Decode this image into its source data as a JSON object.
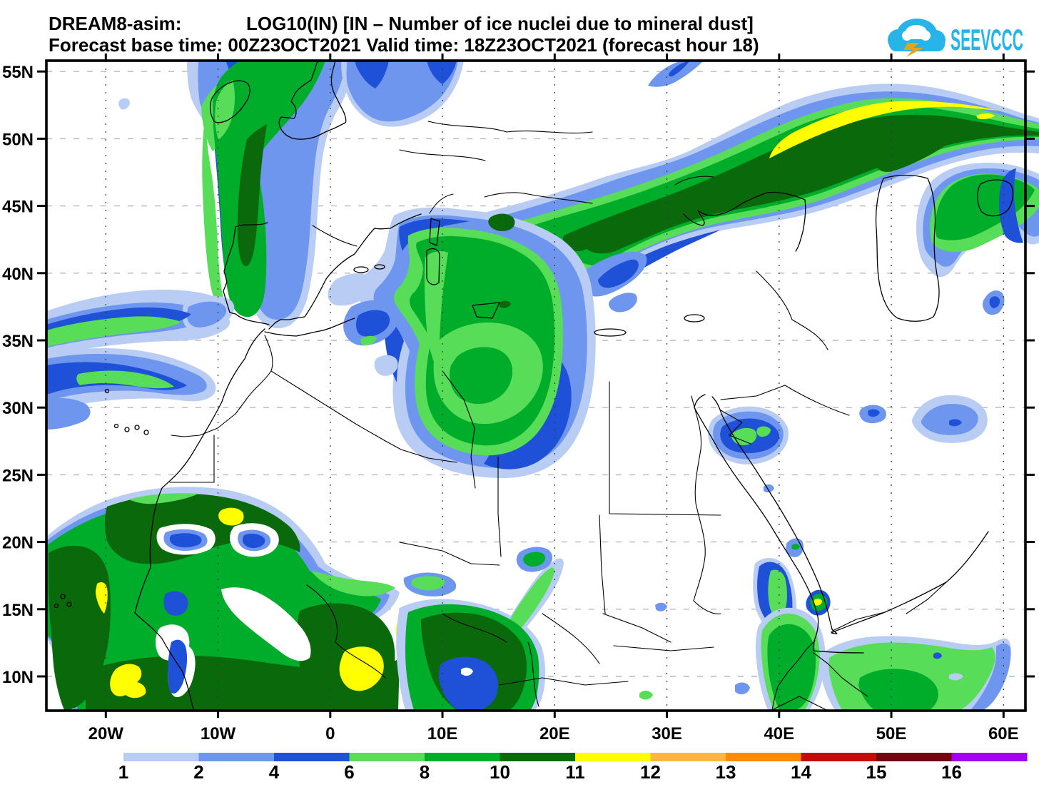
{
  "header": {
    "model_label": "DREAM8-asim:",
    "variable_title": "LOG10(IN)  [IN – Number of ice nuclei due to mineral dust]",
    "forecast_line": "Forecast base time: 00Z23OCT2021   Valid time: 18Z23OCT2021 (forecast hour 18)"
  },
  "logo": {
    "text": "SEEVCCC",
    "cloud_color": "#27b4e8",
    "bolt_color": "#eda215"
  },
  "axes": {
    "lat_labels": [
      "55N",
      "50N",
      "45N",
      "40N",
      "35N",
      "30N",
      "25N",
      "20N",
      "15N",
      "10N"
    ],
    "lon_labels": [
      "20W",
      "10W",
      "0",
      "10E",
      "20E",
      "30E",
      "40E",
      "50E",
      "60E"
    ]
  },
  "legend": {
    "labels": [
      "1",
      "2",
      "4",
      "6",
      "8",
      "10",
      "11",
      "12",
      "13",
      "14",
      "15",
      "16"
    ],
    "colors": [
      "#b9cdf4",
      "#6e96ef",
      "#1e50d8",
      "#57dd57",
      "#00ad2b",
      "#0a690a",
      "#ffff00",
      "#ffb53e",
      "#ff8c00",
      "#c40a0a",
      "#720510",
      "#a100f2"
    ]
  },
  "chart_data": {
    "type": "heatmap",
    "subtype": "filled-contour-forecast-map",
    "title": "LOG10(IN) [IN – Number of ice nuclei due to mineral dust]",
    "model": "DREAM8-asim",
    "forecast_base_time": "00Z23OCT2021",
    "valid_time": "18Z23OCT2021",
    "forecast_hour": 18,
    "x_ticks": [
      "20W",
      "10W",
      "0",
      "10E",
      "20E",
      "30E",
      "40E",
      "50E",
      "60E"
    ],
    "y_ticks": [
      "55N",
      "50N",
      "45N",
      "40N",
      "35N",
      "30N",
      "25N",
      "20N",
      "15N",
      "10N"
    ],
    "levels": [
      1,
      2,
      4,
      6,
      8,
      10,
      11,
      12,
      13,
      14,
      15,
      16
    ],
    "palette": [
      "#b9cdf4",
      "#6e96ef",
      "#1e50d8",
      "#57dd57",
      "#00ad2b",
      "#0a690a",
      "#ffff00",
      "#ffb53e",
      "#ff8c00",
      "#c40a0a",
      "#720510",
      "#a100f2"
    ],
    "legend_position": "bottom",
    "grid": true,
    "features": [
      "Long dust plume from the Adriatic/Balkans across Ukraine and southern Russia toward the Caspian, core values 10-11 with a yellow streak (11-12) near 48-52N, 40-55E",
      "Broad maximum (6-10) over Italy, Tunisia and northwest Libya extending to 27N",
      "North-south plume (6-10) over Ireland, Britain, western France and northern Spain",
      "Large area of 6-11 with local 11-12 spots over West Africa and the Sahel (south of 23N)",
      "Atlantic streaks of 1-8 near 30-36N west of Morocco",
      "Smaller maxima near the eastern Mediterranean, Red Sea coast (11-12 spot near 16N 43E), Ethiopia and the Horn of Africa",
      "Weak patches (1-6) over the Aegean, Iraq/Iran border area and the Gulf of Guinea coast"
    ]
  }
}
